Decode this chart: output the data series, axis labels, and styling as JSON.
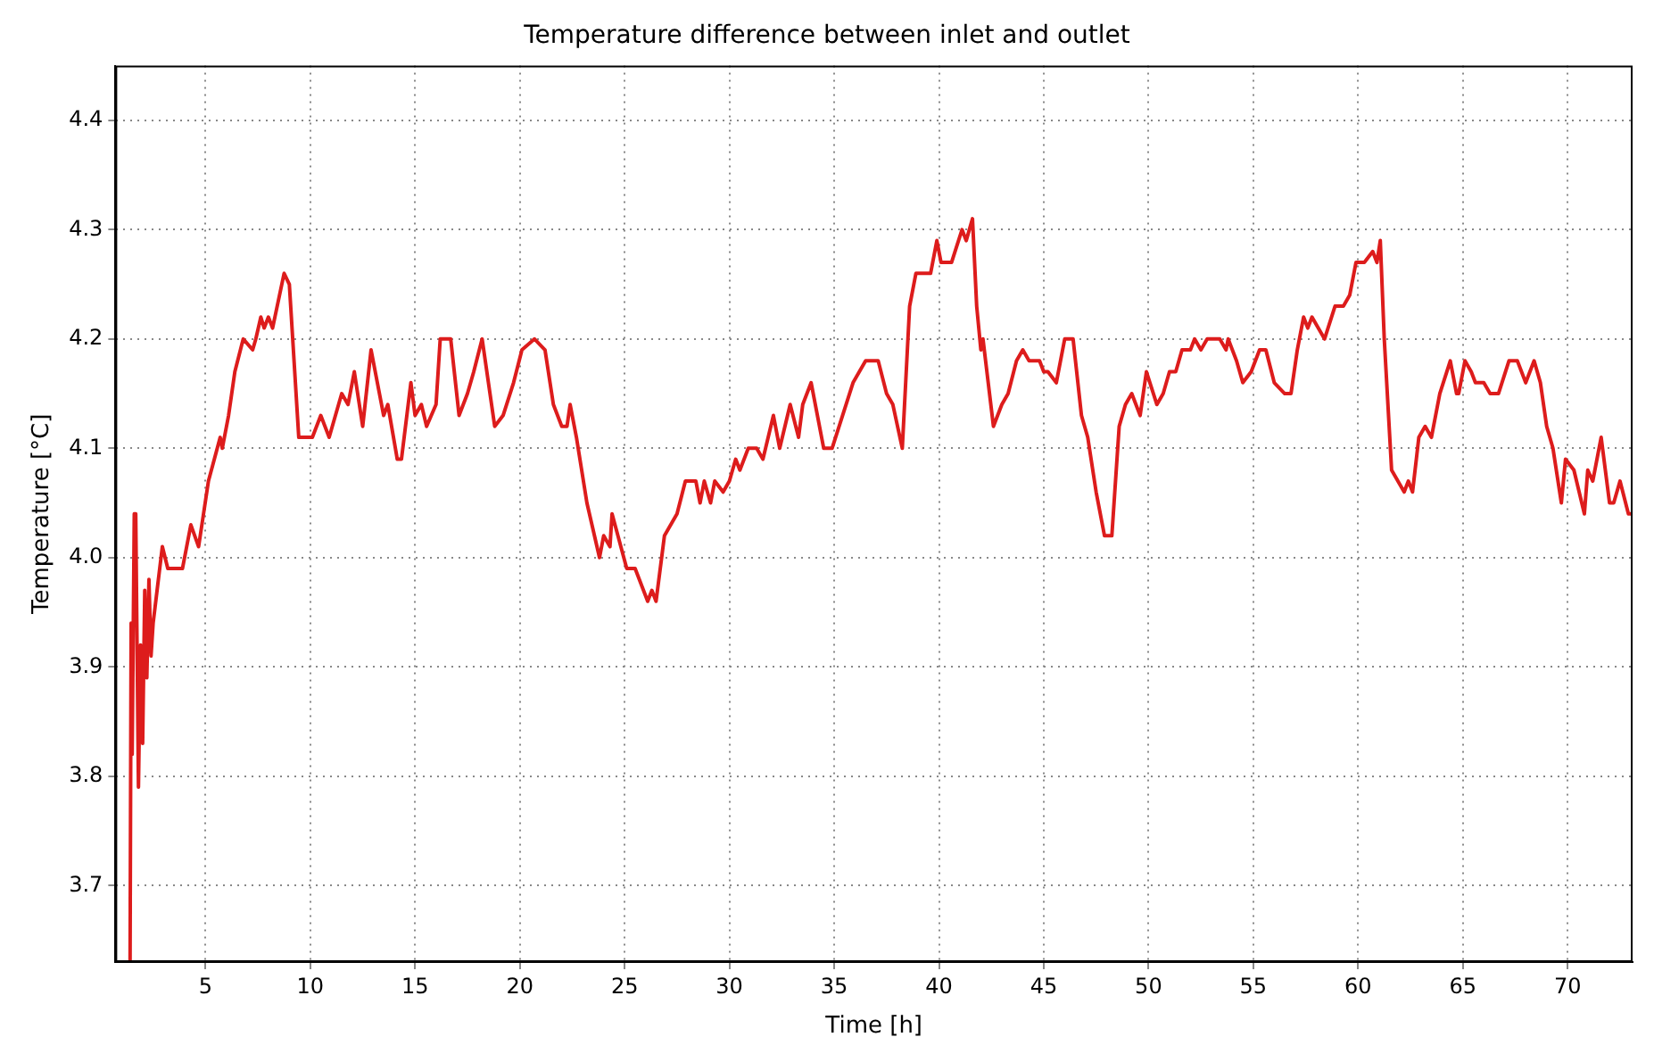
{
  "chart_data": {
    "type": "line",
    "title": "Temperature difference between inlet and outlet",
    "xlabel": "Time [h]",
    "ylabel": "Temperature [°C]",
    "x": [
      1.4,
      1.45,
      1.5,
      1.6,
      1.67,
      1.8,
      1.9,
      2.0,
      2.1,
      2.2,
      2.3,
      2.4,
      2.5,
      2.94,
      3.2,
      3.9,
      4.3,
      4.67,
      5.14,
      5.7,
      5.8,
      6.1,
      6.4,
      6.8,
      7.25,
      7.4,
      7.64,
      7.8,
      8.0,
      8.2,
      8.75,
      9.0,
      9.45,
      10.1,
      10.5,
      10.9,
      11.5,
      11.8,
      12.1,
      12.5,
      12.9,
      13.2,
      13.5,
      13.7,
      14.15,
      14.35,
      14.8,
      15.0,
      15.3,
      15.55,
      16.0,
      16.2,
      16.7,
      17.1,
      17.5,
      17.8,
      18.2,
      18.8,
      19.2,
      19.7,
      20.1,
      20.7,
      21.2,
      21.6,
      22.0,
      22.25,
      22.4,
      22.7,
      23.2,
      23.8,
      24.0,
      24.3,
      24.4,
      25.1,
      25.5,
      26.1,
      26.3,
      26.5,
      26.9,
      27.2,
      27.5,
      27.9,
      28.4,
      28.6,
      28.8,
      29.1,
      29.3,
      29.7,
      30.0,
      30.3,
      30.5,
      30.9,
      31.3,
      31.6,
      32.1,
      32.4,
      32.9,
      33.3,
      33.5,
      33.9,
      34.2,
      34.5,
      34.9,
      35.4,
      35.9,
      36.5,
      37.1,
      37.5,
      37.8,
      38.25,
      38.6,
      38.9,
      39.6,
      39.9,
      40.1,
      40.6,
      41.1,
      41.3,
      41.6,
      41.8,
      42.0,
      42.1,
      42.6,
      43.0,
      43.3,
      43.7,
      44.0,
      44.3,
      44.8,
      45.0,
      45.2,
      45.6,
      46.0,
      46.4,
      46.8,
      47.1,
      47.5,
      47.9,
      48.25,
      48.6,
      48.9,
      49.2,
      49.6,
      49.9,
      50.4,
      50.7,
      51.0,
      51.3,
      51.6,
      52.0,
      52.2,
      52.5,
      52.8,
      53.4,
      53.7,
      53.8,
      54.2,
      54.5,
      54.9,
      55.3,
      55.6,
      56.0,
      56.5,
      56.8,
      57.1,
      57.4,
      57.6,
      57.8,
      58.4,
      58.9,
      59.3,
      59.6,
      59.9,
      60.3,
      60.7,
      60.9,
      61.06,
      61.25,
      61.6,
      61.9,
      62.2,
      62.4,
      62.6,
      62.9,
      63.2,
      63.5,
      63.9,
      64.4,
      64.7,
      64.8,
      65.1,
      65.4,
      65.6,
      66.0,
      66.3,
      66.7,
      67.2,
      67.6,
      68.0,
      68.4,
      68.7,
      69.0,
      69.3,
      69.7,
      69.9,
      70.3,
      70.8,
      70.96,
      71.2,
      71.6,
      72.0,
      72.2,
      72.5,
      72.9,
      73.1
    ],
    "series": [
      {
        "color": "#dd1c1c",
        "values": [
          3.63,
          3.94,
          3.82,
          4.04,
          4.04,
          3.79,
          3.92,
          3.83,
          3.97,
          3.89,
          3.98,
          3.91,
          3.94,
          4.01,
          3.99,
          3.99,
          4.03,
          4.01,
          4.07,
          4.11,
          4.1,
          4.13,
          4.17,
          4.2,
          4.19,
          4.2,
          4.22,
          4.21,
          4.22,
          4.21,
          4.26,
          4.25,
          4.11,
          4.11,
          4.13,
          4.11,
          4.15,
          4.14,
          4.17,
          4.12,
          4.19,
          4.16,
          4.13,
          4.14,
          4.09,
          4.09,
          4.16,
          4.13,
          4.14,
          4.12,
          4.14,
          4.2,
          4.2,
          4.13,
          4.15,
          4.17,
          4.2,
          4.12,
          4.13,
          4.16,
          4.19,
          4.2,
          4.19,
          4.14,
          4.12,
          4.12,
          4.14,
          4.11,
          4.05,
          4.0,
          4.02,
          4.01,
          4.04,
          3.99,
          3.99,
          3.96,
          3.97,
          3.96,
          4.02,
          4.03,
          4.04,
          4.07,
          4.07,
          4.05,
          4.07,
          4.05,
          4.07,
          4.06,
          4.07,
          4.09,
          4.08,
          4.1,
          4.1,
          4.09,
          4.13,
          4.1,
          4.14,
          4.11,
          4.14,
          4.16,
          4.13,
          4.1,
          4.1,
          4.13,
          4.16,
          4.18,
          4.18,
          4.15,
          4.14,
          4.1,
          4.23,
          4.26,
          4.26,
          4.29,
          4.27,
          4.27,
          4.3,
          4.29,
          4.31,
          4.23,
          4.19,
          4.2,
          4.12,
          4.14,
          4.15,
          4.18,
          4.19,
          4.18,
          4.18,
          4.17,
          4.17,
          4.16,
          4.2,
          4.2,
          4.13,
          4.11,
          4.06,
          4.02,
          4.02,
          4.12,
          4.14,
          4.15,
          4.13,
          4.17,
          4.14,
          4.15,
          4.17,
          4.17,
          4.19,
          4.19,
          4.2,
          4.19,
          4.2,
          4.2,
          4.19,
          4.2,
          4.18,
          4.16,
          4.17,
          4.19,
          4.19,
          4.16,
          4.15,
          4.15,
          4.19,
          4.22,
          4.21,
          4.22,
          4.2,
          4.23,
          4.23,
          4.24,
          4.27,
          4.27,
          4.28,
          4.27,
          4.29,
          4.2,
          4.08,
          4.07,
          4.06,
          4.07,
          4.06,
          4.11,
          4.12,
          4.11,
          4.15,
          4.18,
          4.15,
          4.15,
          4.18,
          4.17,
          4.16,
          4.16,
          4.15,
          4.15,
          4.18,
          4.18,
          4.16,
          4.18,
          4.16,
          4.12,
          4.1,
          4.05,
          4.09,
          4.08,
          4.04,
          4.08,
          4.07,
          4.11,
          4.05,
          4.05,
          4.07,
          4.04,
          4.04
        ]
      }
    ],
    "xlim": [
      0.7,
      73.1
    ],
    "xticks": [
      5,
      10,
      15,
      20,
      25,
      30,
      35,
      40,
      45,
      50,
      55,
      60,
      65,
      70
    ],
    "ylim": [
      3.63,
      4.45
    ],
    "yticks": [
      3.7,
      3.8,
      3.9,
      {
        "value": 4,
        "label": "4.0"
      },
      4.1,
      4.2,
      4.3,
      4.4
    ],
    "grid": true,
    "line_style": "solid"
  }
}
